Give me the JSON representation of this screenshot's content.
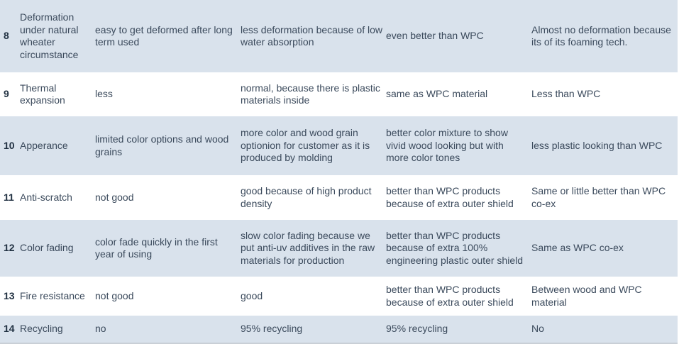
{
  "rows": [
    {
      "num": "8",
      "feature": "Deformation\nunder natural\nwheater\ncircumstance",
      "wood": "easy to get deformed after long\nterm used",
      "wpc": "less deformation because of low\nwater absorption",
      "coex": "even better than WPC",
      "pvc": "Almost no deformation because\nits of its foaming tech."
    },
    {
      "num": "9",
      "feature": "Thermal\nexpansion",
      "wood": "less",
      "wpc": "normal, because there is plastic\nmaterials inside",
      "coex": "same as WPC material",
      "pvc": "Less than WPC"
    },
    {
      "num": "10",
      "feature": "Apperance",
      "wood": "limited color options and wood\ngrains",
      "wpc": "more color and wood grain\noptionion for customer as it is\nproduced by molding",
      "coex": "better color mixture to show\nvivid wood looking but with\nmore color tones",
      "pvc": "less plastic looking than WPC"
    },
    {
      "num": "11",
      "feature": "Anti-scratch",
      "wood": "not good",
      "wpc": "good because of high product\ndensity",
      "coex": "better than WPC products\nbecause of extra outer shield",
      "pvc": "Same or little better than WPC\nco-ex"
    },
    {
      "num": "12",
      "feature": "Color fading",
      "wood": "color fade quickly in the first\nyear of using",
      "wpc": "slow color fading because we\nput anti-uv additives in the raw\nmaterials for production",
      "coex": "better than WPC products\nbecause of extra 100%\nengineering plastic outer shield",
      "pvc": "Same as WPC co-ex"
    },
    {
      "num": "13",
      "feature": "Fire resistance",
      "wood": "not good",
      "wpc": "good",
      "coex": "better than WPC products\nbecause of extra outer shield",
      "pvc": "Between wood and WPC\nmaterial"
    },
    {
      "num": "14",
      "feature": "Recycling",
      "wood": "no",
      "wpc": "95% recycling",
      "coex": "95% recycling",
      "pvc": "No"
    }
  ]
}
